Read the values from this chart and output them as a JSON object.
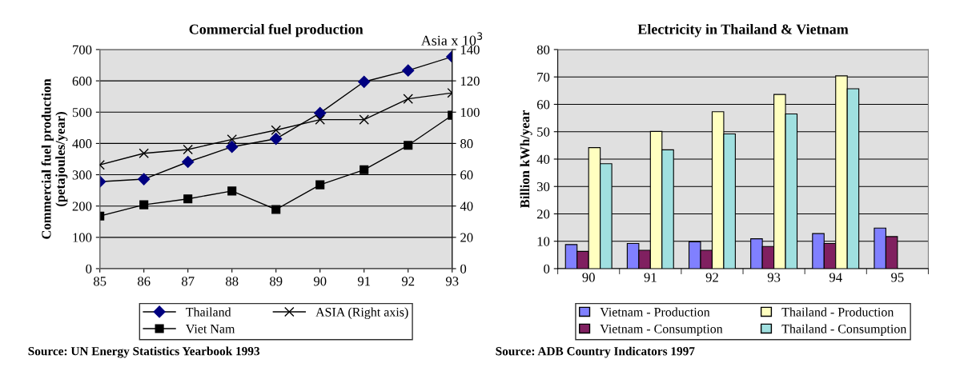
{
  "chart_data": [
    {
      "type": "line",
      "title": "Commercial fuel production",
      "ylabel": "Commercial fuel production\n(petajoules/year)",
      "y2label": "Asia x 10$^{3}$",
      "categories": [
        "85",
        "86",
        "87",
        "88",
        "89",
        "90",
        "91",
        "92",
        "93"
      ],
      "series": [
        {
          "name": "Thailand",
          "color": "#000080",
          "marker": "diamond",
          "values": [
            278,
            286,
            341,
            389,
            415,
            497,
            597,
            633,
            677
          ]
        },
        {
          "name": "Viet Nam",
          "color": "#000000",
          "marker": "square",
          "values": [
            168,
            204,
            223,
            248,
            189,
            268,
            316,
            394,
            490
          ]
        },
        {
          "name": "ASIA (Right axis)",
          "color": "#000000",
          "marker": "cross",
          "axis": "y2",
          "values": [
            66.3,
            73.7,
            76.1,
            82.6,
            88.5,
            95.2,
            95.2,
            108.5,
            112.3
          ]
        }
      ],
      "ylim": [
        0,
        700
      ],
      "yticks": [
        0,
        100,
        200,
        300,
        400,
        500,
        600,
        700
      ],
      "y2lim": [
        0,
        140
      ],
      "y2ticks": [
        0,
        20,
        40,
        60,
        80,
        100,
        120,
        140
      ],
      "grid": "y",
      "legend": "bottom",
      "line_style": "solid",
      "annotations": [
        "Source: UN Energy Statistics Yearbook 1993"
      ]
    },
    {
      "type": "bar",
      "title": "Electricity in Thailand & Vietnam",
      "ylabel": "Billion kWh/year",
      "categories": [
        "90",
        "91",
        "92",
        "93",
        "94",
        "95"
      ],
      "series": [
        {
          "name": "Vietnam - Production",
          "color": "#8080ff",
          "values": [
            8.8,
            9.2,
            9.8,
            10.9,
            12.8,
            14.8
          ]
        },
        {
          "name": "Vietnam - Consumption",
          "color": "#802060",
          "values": [
            6.3,
            6.7,
            6.7,
            8.1,
            9.2,
            11.7
          ]
        },
        {
          "name": "Thailand - Production",
          "color": "#ffffc0",
          "values": [
            44.2,
            50.1,
            57.3,
            63.6,
            70.4,
            null
          ]
        },
        {
          "name": "Thailand - Consumption",
          "color": "#a0e0e0",
          "values": [
            38.3,
            43.4,
            49.2,
            56.5,
            65.7,
            null
          ]
        }
      ],
      "ylim": [
        0,
        80
      ],
      "yticks": [
        0,
        10,
        20,
        30,
        40,
        50,
        60,
        70,
        80
      ],
      "grid": "y",
      "legend": "bottom",
      "annotations": [
        "Source: ADB Country Indicators 1997"
      ]
    }
  ]
}
